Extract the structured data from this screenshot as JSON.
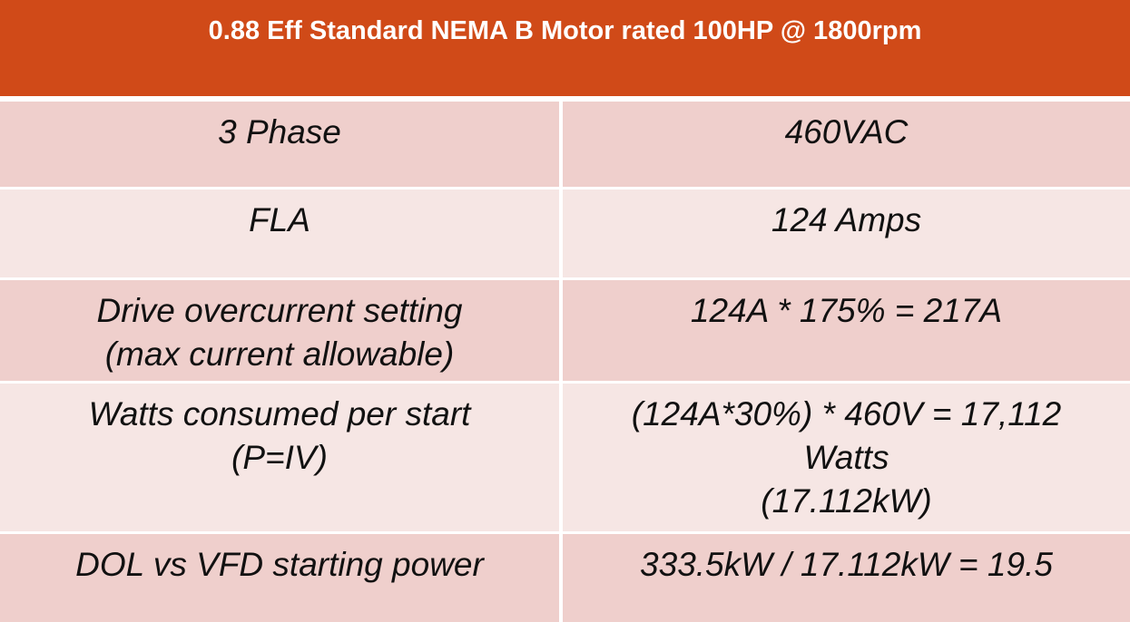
{
  "header": {
    "title": "0.88 Eff Standard NEMA B Motor rated 100HP @ 1800rpm"
  },
  "table": {
    "rows": [
      [
        [
          "3 Phase"
        ],
        [
          "460VAC"
        ]
      ],
      [
        [
          "FLA"
        ],
        [
          "124 Amps"
        ]
      ],
      [
        [
          "Drive overcurrent setting",
          "(max current allowable)"
        ],
        [
          "124A * 175% = 217A"
        ]
      ],
      [
        [
          "Watts consumed per start",
          "(P=IV)"
        ],
        [
          "(124A*30%) * 460V = 17,112",
          "Watts",
          "(17.112kW)"
        ]
      ],
      [
        [
          "DOL vs VFD starting power"
        ],
        [
          "333.5kW / 17.112kW = 19.5"
        ]
      ]
    ]
  }
}
